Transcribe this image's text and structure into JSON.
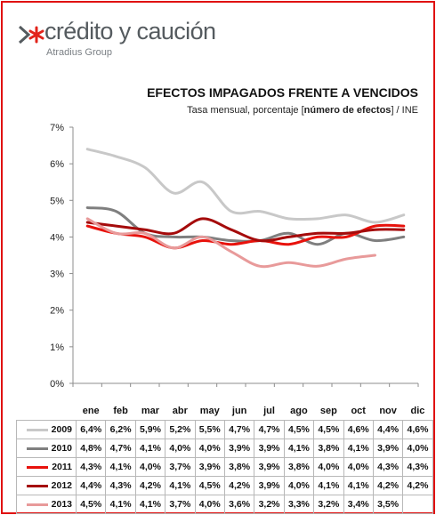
{
  "brand": {
    "name": "crédito y caución",
    "sub": "Atradius Group",
    "arrow_color": "#555b5f",
    "star_color": "#e2231a"
  },
  "chart_data": {
    "type": "line",
    "title": "EFECTOS IMPAGADOS FRENTE A VENCIDOS",
    "subtitle_pre": "Tasa mensual,  porcentaje [",
    "subtitle_bold": "número de efectos",
    "subtitle_post": "] / INE",
    "categories": [
      "ene",
      "feb",
      "mar",
      "abr",
      "may",
      "jun",
      "jul",
      "ago",
      "sep",
      "oct",
      "nov",
      "dic"
    ],
    "yticks": [
      "0%",
      "1%",
      "2%",
      "3%",
      "4%",
      "5%",
      "6%",
      "7%"
    ],
    "ylim": [
      0,
      7
    ],
    "grid": false,
    "series": [
      {
        "name": "2009",
        "color": "#c8c8c8",
        "values": [
          6.4,
          6.2,
          5.9,
          5.2,
          5.5,
          4.7,
          4.7,
          4.5,
          4.5,
          4.6,
          4.4,
          4.6
        ],
        "labels": [
          "6,4%",
          "6,2%",
          "5,9%",
          "5,2%",
          "5,5%",
          "4,7%",
          "4,7%",
          "4,5%",
          "4,5%",
          "4,6%",
          "4,4%",
          "4,6%"
        ]
      },
      {
        "name": "2010",
        "color": "#7f7f7f",
        "values": [
          4.8,
          4.7,
          4.1,
          4.0,
          4.0,
          3.9,
          3.9,
          4.1,
          3.8,
          4.1,
          3.9,
          4.0
        ],
        "labels": [
          "4,8%",
          "4,7%",
          "4,1%",
          "4,0%",
          "4,0%",
          "3,9%",
          "3,9%",
          "4,1%",
          "3,8%",
          "4,1%",
          "3,9%",
          "4,0%"
        ]
      },
      {
        "name": "2011",
        "color": "#e8120c",
        "values": [
          4.3,
          4.1,
          4.0,
          3.7,
          3.9,
          3.8,
          3.9,
          3.8,
          4.0,
          4.0,
          4.3,
          4.3
        ],
        "labels": [
          "4,3%",
          "4,1%",
          "4,0%",
          "3,7%",
          "3,9%",
          "3,8%",
          "3,9%",
          "3,8%",
          "4,0%",
          "4,0%",
          "4,3%",
          "4,3%"
        ]
      },
      {
        "name": "2012",
        "color": "#a50b0b",
        "values": [
          4.4,
          4.3,
          4.2,
          4.1,
          4.5,
          4.2,
          3.9,
          4.0,
          4.1,
          4.1,
          4.2,
          4.2
        ],
        "labels": [
          "4,4%",
          "4,3%",
          "4,2%",
          "4,1%",
          "4,5%",
          "4,2%",
          "3,9%",
          "4,0%",
          "4,1%",
          "4,1%",
          "4,2%",
          "4,2%"
        ]
      },
      {
        "name": "2013",
        "color": "#e89a9a",
        "values": [
          4.5,
          4.1,
          4.1,
          3.7,
          4.0,
          3.6,
          3.2,
          3.3,
          3.2,
          3.4,
          3.5,
          null
        ],
        "labels": [
          "4,5%",
          "4,1%",
          "4,1%",
          "3,7%",
          "4,0%",
          "3,6%",
          "3,2%",
          "3,3%",
          "3,2%",
          "3,4%",
          "3,5%",
          ""
        ]
      }
    ]
  }
}
